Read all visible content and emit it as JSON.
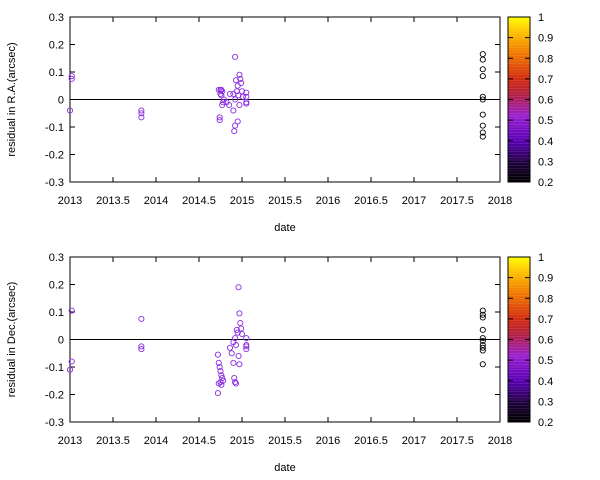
{
  "chart_data": [
    {
      "type": "scatter",
      "title": "",
      "xlabel": "date",
      "ylabel": "residual in R.A.(arcsec)",
      "xlim": [
        2013,
        2018
      ],
      "ylim": [
        -0.3,
        0.3
      ],
      "xticks": [
        "2013",
        "2013.5",
        "2014",
        "2014.5",
        "2015",
        "2015.5",
        "2016",
        "2016.5",
        "2017",
        "2017.5",
        "2018"
      ],
      "yticks": [
        "0.3",
        "0.2",
        "0.1",
        "0",
        "-0.1",
        "-0.2",
        "-0.3"
      ],
      "zero_line": true,
      "grid": false,
      "colorbar": {
        "min": 0.2,
        "max": 1.0,
        "ticks": [
          "1",
          "0.9",
          "0.8",
          "0.7",
          "0.6",
          "0.5",
          "0.4",
          "0.3",
          "0.2"
        ]
      },
      "series": [
        {
          "color": "#8a2be2",
          "x": [
            2013.02,
            2013.02,
            2013.0,
            2013.83,
            2013.83,
            2013.83,
            2014.73,
            2014.75,
            2014.76,
            2014.77,
            2014.75,
            2014.76,
            2014.79,
            2014.78,
            2014.77,
            2014.74,
            2014.74,
            2014.82,
            2014.85,
            2014.86,
            2014.9,
            2014.9,
            2014.92,
            2014.93,
            2014.92,
            2014.95,
            2014.94,
            2014.96,
            2014.97,
            2014.98,
            2014.99,
            2015.0,
            2015.01,
            2014.97,
            2014.95,
            2014.92,
            2014.91,
            2015.05,
            2015.05,
            2015.05,
            2015.05
          ],
          "y": [
            0.085,
            0.075,
            -0.04,
            -0.04,
            -0.05,
            -0.065,
            0.035,
            0.035,
            0.035,
            0.03,
            0.02,
            0.015,
            0.0,
            -0.01,
            -0.02,
            -0.065,
            -0.075,
            -0.01,
            -0.02,
            0.02,
            0.02,
            -0.04,
            0.155,
            0.07,
            0.0,
            0.05,
            0.03,
            0.015,
            0.09,
            0.075,
            0.06,
            0.03,
            0.01,
            -0.02,
            -0.08,
            -0.095,
            -0.115,
            0.025,
            0.01,
            -0.01,
            -0.015
          ]
        },
        {
          "color": "#000000",
          "x": [
            2017.8,
            2017.8,
            2017.8,
            2017.8,
            2017.8,
            2017.8,
            2017.8,
            2017.8,
            2017.8,
            2017.8
          ],
          "y": [
            0.165,
            0.145,
            0.11,
            0.085,
            0.01,
            0.0,
            -0.055,
            -0.095,
            -0.12,
            -0.135
          ]
        }
      ]
    },
    {
      "type": "scatter",
      "title": "",
      "xlabel": "date",
      "ylabel": "residual in Dec.(arcsec)",
      "xlim": [
        2013,
        2018
      ],
      "ylim": [
        -0.3,
        0.3
      ],
      "xticks": [
        "2013",
        "2013.5",
        "2014",
        "2014.5",
        "2015",
        "2015.5",
        "2016",
        "2016.5",
        "2017",
        "2017.5",
        "2018"
      ],
      "yticks": [
        "0.3",
        "0.2",
        "0.1",
        "0",
        "-0.1",
        "-0.2",
        "-0.3"
      ],
      "zero_line": true,
      "grid": false,
      "colorbar": {
        "min": 0.2,
        "max": 1.0,
        "ticks": [
          "1",
          "0.9",
          "0.8",
          "0.7",
          "0.6",
          "0.5",
          "0.4",
          "0.3",
          "0.2"
        ]
      },
      "series": [
        {
          "color": "#8a2be2",
          "x": [
            2013.02,
            2013.02,
            2013.0,
            2013.83,
            2013.83,
            2013.83,
            2014.72,
            2014.73,
            2014.74,
            2014.75,
            2014.76,
            2014.77,
            2014.78,
            2014.73,
            2014.75,
            2014.76,
            2014.72,
            2014.86,
            2014.88,
            2014.9,
            2014.91,
            2014.92,
            2014.93,
            2014.94,
            2014.95,
            2014.96,
            2014.97,
            2014.98,
            2014.99,
            2015.0,
            2014.92,
            2014.9,
            2014.93,
            2014.96,
            2014.97,
            2015.05,
            2015.05,
            2015.05,
            2015.05
          ],
          "y": [
            0.105,
            -0.08,
            -0.11,
            0.075,
            -0.025,
            -0.035,
            -0.055,
            -0.085,
            -0.1,
            -0.115,
            -0.13,
            -0.14,
            -0.15,
            -0.16,
            -0.155,
            -0.165,
            -0.195,
            -0.03,
            -0.05,
            -0.085,
            -0.14,
            -0.155,
            -0.16,
            0.035,
            0.025,
            0.19,
            0.095,
            0.06,
            0.04,
            0.02,
            0.005,
            -0.01,
            -0.02,
            -0.06,
            -0.09,
            0.005,
            -0.02,
            -0.025,
            -0.035
          ]
        },
        {
          "color": "#000000",
          "x": [
            2017.8,
            2017.8,
            2017.8,
            2017.8,
            2017.8,
            2017.8,
            2017.8,
            2017.8,
            2017.8,
            2017.8
          ],
          "y": [
            0.105,
            0.09,
            0.08,
            0.035,
            0.005,
            -0.005,
            -0.02,
            -0.03,
            -0.04,
            -0.09
          ]
        }
      ]
    }
  ]
}
